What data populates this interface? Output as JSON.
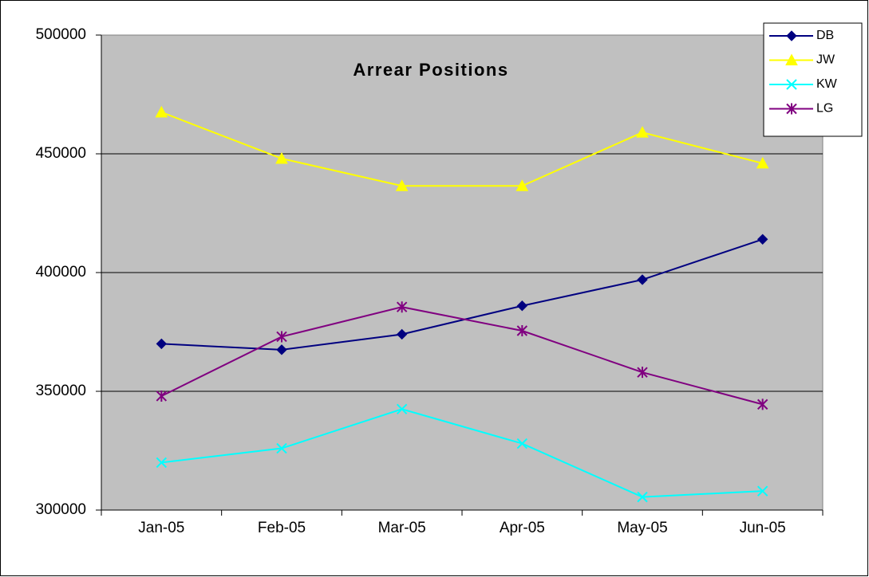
{
  "chart_data": {
    "type": "line",
    "title": "Arrear Positions",
    "categories": [
      "Jan-05",
      "Feb-05",
      "Mar-05",
      "Apr-05",
      "May-05",
      "Jun-05"
    ],
    "series": [
      {
        "name": "DB",
        "color": "#000080",
        "marker": "diamond",
        "values": [
          370000,
          367500,
          374000,
          386000,
          397000,
          414000
        ]
      },
      {
        "name": "JW",
        "color": "#ffff00",
        "marker": "triangle",
        "values": [
          467500,
          448000,
          436500,
          436500,
          459000,
          446000
        ]
      },
      {
        "name": "KW",
        "color": "#00ffff",
        "marker": "x",
        "values": [
          320000,
          326000,
          342500,
          328000,
          305500,
          308000
        ]
      },
      {
        "name": "LG",
        "color": "#800080",
        "marker": "star",
        "values": [
          348000,
          373000,
          385500,
          375500,
          358000,
          344500
        ]
      }
    ],
    "ylim": [
      300000,
      500000
    ],
    "yticks": [
      300000,
      350000,
      400000,
      450000,
      500000
    ],
    "grid": true,
    "legend": "top-right"
  }
}
